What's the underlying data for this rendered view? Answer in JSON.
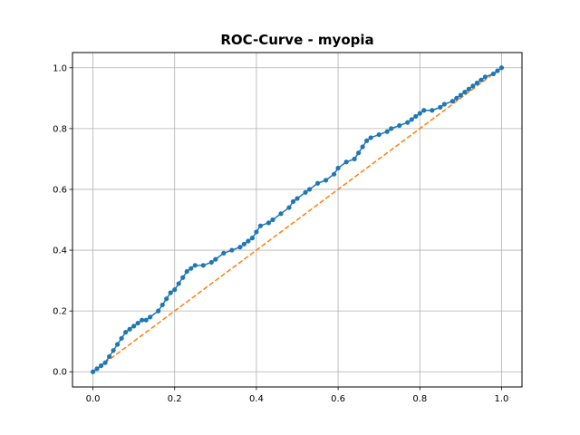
{
  "chart_data": {
    "type": "line",
    "title": "ROC-Curve - myopia",
    "xlabel": "",
    "ylabel": "",
    "xlim": [
      -0.05,
      1.05
    ],
    "ylim": [
      -0.05,
      1.05
    ],
    "x_ticks": [
      0.0,
      0.2,
      0.4,
      0.6,
      0.8,
      1.0
    ],
    "x_tick_labels": [
      "0.0",
      "0.2",
      "0.4",
      "0.6",
      "0.8",
      "1.0"
    ],
    "y_ticks": [
      0.0,
      0.2,
      0.4,
      0.6,
      0.8,
      1.0
    ],
    "y_tick_labels": [
      "0.0",
      "0.2",
      "0.4",
      "0.6",
      "0.8",
      "1.0"
    ],
    "grid": true,
    "legend": "none",
    "series": [
      {
        "style": "solid-with-markers",
        "color": "#1f77b4",
        "x": [
          0.0,
          0.01,
          0.02,
          0.03,
          0.04,
          0.05,
          0.06,
          0.07,
          0.08,
          0.09,
          0.1,
          0.11,
          0.12,
          0.13,
          0.14,
          0.16,
          0.17,
          0.18,
          0.19,
          0.2,
          0.21,
          0.22,
          0.23,
          0.24,
          0.25,
          0.27,
          0.29,
          0.3,
          0.32,
          0.34,
          0.36,
          0.37,
          0.38,
          0.39,
          0.4,
          0.41,
          0.43,
          0.44,
          0.46,
          0.48,
          0.49,
          0.5,
          0.52,
          0.53,
          0.55,
          0.57,
          0.59,
          0.6,
          0.62,
          0.64,
          0.65,
          0.66,
          0.67,
          0.68,
          0.7,
          0.72,
          0.73,
          0.75,
          0.77,
          0.78,
          0.79,
          0.8,
          0.81,
          0.83,
          0.85,
          0.86,
          0.88,
          0.89,
          0.9,
          0.91,
          0.92,
          0.93,
          0.94,
          0.95,
          0.96,
          0.98,
          0.99,
          1.0
        ],
        "y": [
          0.0,
          0.01,
          0.02,
          0.03,
          0.05,
          0.07,
          0.09,
          0.11,
          0.13,
          0.14,
          0.15,
          0.16,
          0.17,
          0.17,
          0.18,
          0.2,
          0.22,
          0.24,
          0.26,
          0.27,
          0.29,
          0.31,
          0.33,
          0.34,
          0.35,
          0.35,
          0.36,
          0.37,
          0.39,
          0.4,
          0.41,
          0.42,
          0.43,
          0.44,
          0.46,
          0.48,
          0.49,
          0.5,
          0.52,
          0.54,
          0.56,
          0.57,
          0.59,
          0.6,
          0.62,
          0.63,
          0.65,
          0.67,
          0.69,
          0.7,
          0.72,
          0.74,
          0.76,
          0.77,
          0.78,
          0.79,
          0.8,
          0.81,
          0.82,
          0.83,
          0.84,
          0.85,
          0.86,
          0.86,
          0.87,
          0.88,
          0.89,
          0.9,
          0.91,
          0.92,
          0.93,
          0.94,
          0.95,
          0.96,
          0.97,
          0.98,
          0.99,
          1.0
        ]
      },
      {
        "style": "dashed",
        "color": "#ff7f0e",
        "x": [
          0.0,
          1.0
        ],
        "y": [
          0.0,
          1.0
        ]
      }
    ],
    "colors": {
      "grid": "#b0b0b0",
      "axes": "#000000",
      "background": "#ffffff"
    }
  }
}
